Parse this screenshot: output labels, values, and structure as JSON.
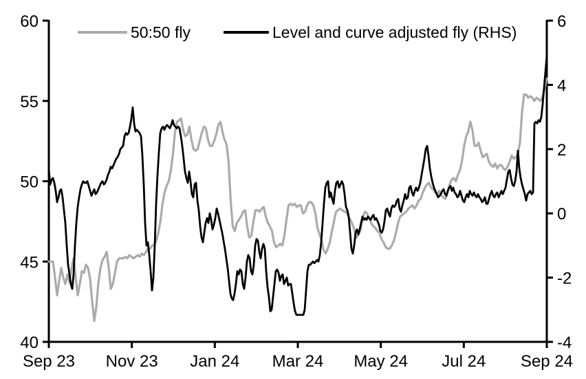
{
  "chart_data": {
    "type": "line",
    "title": "",
    "grid": false,
    "legend_position": "top",
    "background_color": "#ffffff",
    "axis_color": "#000000",
    "x_axis": {
      "labels": [
        "Sep 23",
        "Nov 23",
        "Jan 24",
        "Mar 24",
        "May 24",
        "Jul 24",
        "Sep 24"
      ]
    },
    "left_axis": {
      "min": 40,
      "max": 60,
      "ticks": [
        60,
        55,
        50,
        45,
        40
      ]
    },
    "right_axis": {
      "min": -4,
      "max": 6,
      "ticks": [
        6,
        4,
        2,
        0,
        -2,
        -4
      ]
    },
    "series": [
      {
        "name": "50:50 fly",
        "axis": "left",
        "color": "#ababab",
        "line_width": 3.2,
        "values": [
          45.0,
          45.0,
          45.0,
          44.0,
          42.9,
          43.8,
          44.6,
          44.0,
          43.6,
          44.2,
          43.7,
          44.6,
          45.2,
          44.0,
          42.9,
          43.6,
          44.4,
          44.3,
          44.8,
          44.6,
          43.9,
          42.5,
          41.3,
          42.2,
          43.7,
          44.6,
          45.1,
          45.3,
          45.6,
          44.6,
          43.3,
          43.6,
          44.3,
          45.0,
          45.2,
          45.2,
          45.2,
          45.3,
          45.2,
          45.4,
          45.3,
          45.2,
          45.3,
          45.4,
          45.3,
          45.5,
          45.4,
          45.6,
          45.8,
          45.8,
          46.0,
          46.0,
          46.3,
          46.8,
          47.5,
          48.6,
          49.3,
          49.7,
          50.0,
          50.6,
          51.6,
          53.0,
          53.7,
          53.8,
          53.9,
          53.2,
          52.8,
          52.9,
          53.4,
          52.6,
          52.0,
          51.9,
          52.0,
          52.5,
          53.0,
          53.4,
          53.3,
          52.6,
          52.2,
          52.2,
          52.5,
          52.9,
          53.5,
          53.7,
          53.1,
          52.6,
          52.3,
          51.2,
          48.8,
          47.2,
          46.9,
          47.4,
          47.6,
          47.8,
          48.1,
          48.2,
          47.2,
          46.5,
          46.6,
          47.5,
          48.2,
          48.2,
          48.1,
          48.3,
          48.4,
          47.8,
          47.4,
          47.2,
          46.9,
          46.2,
          45.9,
          46.0,
          46.1,
          46.0,
          46.6,
          47.6,
          48.5,
          48.6,
          48.5,
          48.6,
          48.4,
          48.5,
          48.5,
          48.0,
          48.1,
          48.5,
          48.7,
          48.7,
          48.5,
          48.0,
          47.1,
          46.7,
          46.3,
          45.7,
          45.5,
          45.8,
          46.2,
          46.9,
          47.5,
          48.1,
          48.2,
          48.3,
          48.2,
          48.1,
          48.1,
          47.8,
          47.6,
          47.3,
          46.9,
          46.5,
          46.7,
          47.0,
          47.8,
          48.1,
          48.0,
          47.7,
          47.4,
          47.2,
          47.1,
          46.9,
          46.8,
          46.4,
          46.2,
          45.9,
          45.8,
          45.8,
          46.0,
          46.3,
          46.8,
          47.4,
          47.8,
          47.9,
          48.0,
          48.1,
          48.3,
          48.4,
          48.5,
          48.3,
          48.5,
          48.8,
          48.9,
          49.3,
          49.6,
          49.8,
          49.9,
          49.6,
          49.5,
          49.3,
          49.2,
          49.4,
          49.1,
          49.0,
          48.9,
          49.3,
          49.8,
          50.1,
          50.2,
          50.0,
          50.4,
          50.7,
          51.3,
          52.2,
          52.8,
          53.1,
          53.7,
          53.2,
          52.2,
          52.2,
          52.4,
          51.9,
          51.5,
          51.6,
          51.7,
          51.2,
          51.0,
          50.9,
          51.1,
          50.8,
          51.0,
          51.0,
          50.8,
          50.7,
          50.9,
          51.2,
          51.6,
          51.4,
          51.5,
          51.7,
          52.4,
          54.3,
          55.4,
          55.4,
          55.2,
          55.3,
          55.2,
          55.0,
          55.2,
          55.1,
          55.0,
          55.3,
          55.8,
          56.4
        ]
      },
      {
        "name": "Level and curve adjusted fly (RHS)",
        "axis": "right",
        "color": "#000000",
        "line_width": 2.8,
        "values": [
          1.35,
          0.9,
          1.05,
          1.1,
          0.95,
          0.7,
          0.35,
          0.5,
          0.7,
          0.75,
          0.5,
          0.1,
          -0.3,
          -1.0,
          -1.6,
          -1.9,
          -2.2,
          -2.35,
          -1.9,
          -1.0,
          -0.3,
          0.2,
          0.5,
          0.75,
          0.9,
          1.0,
          0.95,
          0.95,
          1.0,
          0.85,
          0.7,
          0.55,
          0.65,
          0.75,
          0.6,
          0.65,
          0.75,
          0.85,
          0.95,
          1.0,
          0.9,
          0.95,
          1.05,
          1.2,
          1.3,
          1.45,
          1.4,
          1.5,
          1.6,
          1.7,
          1.75,
          1.85,
          2.0,
          2.05,
          2.1,
          2.4,
          2.5,
          2.45,
          2.5,
          2.7,
          2.95,
          3.3,
          2.8,
          2.55,
          2.6,
          2.55,
          2.5,
          2.4,
          1.8,
          0.9,
          -0.3,
          -1.0,
          -0.9,
          -1.3,
          -1.8,
          -2.4,
          -2.0,
          -1.0,
          0.3,
          1.2,
          1.9,
          2.5,
          2.65,
          2.7,
          2.6,
          2.7,
          2.75,
          2.7,
          2.65,
          2.75,
          2.9,
          2.75,
          2.7,
          2.65,
          2.7,
          2.65,
          2.4,
          2.1,
          1.7,
          1.3,
          1.1,
          0.95,
          1.3,
          1.0,
          0.6,
          0.5,
          0.9,
          0.95,
          0.4,
          0.1,
          -0.4,
          -0.75,
          -0.9,
          -0.6,
          -0.3,
          -0.15,
          -0.3,
          0.0,
          -0.2,
          -0.5,
          -0.35,
          -0.15,
          0.15,
          0.0,
          -0.2,
          -0.4,
          -0.6,
          -0.85,
          -1.1,
          -1.4,
          -1.7,
          -2.1,
          -2.5,
          -2.65,
          -2.7,
          -2.5,
          -2.2,
          -1.8,
          -1.9,
          -1.75,
          -1.8,
          -2.2,
          -2.35,
          -2.0,
          -1.5,
          -1.3,
          -1.4,
          -1.8,
          -1.9,
          -1.6,
          -1.0,
          -0.8,
          -0.85,
          -1.2,
          -1.4,
          -1.1,
          -0.95,
          -1.1,
          -1.8,
          -2.3,
          -2.6,
          -3.05,
          -3.0,
          -2.6,
          -2.2,
          -1.8,
          -1.75,
          -1.85,
          -2.1,
          -1.95,
          -1.9,
          -2.2,
          -2.1,
          -2.0,
          -2.25,
          -2.2,
          -2.2,
          -2.5,
          -2.8,
          -3.05,
          -3.16,
          -3.16,
          -3.16,
          -3.16,
          -3.16,
          -3.16,
          -3.0,
          -2.4,
          -1.8,
          -1.6,
          -1.6,
          -1.55,
          -1.5,
          -1.55,
          -1.5,
          -1.45,
          -1.5,
          -1.3,
          -0.9,
          -0.3,
          0.3,
          0.8,
          0.95,
          1.0,
          0.5,
          0.65,
          0.45,
          0.3,
          0.7,
          0.95,
          1.0,
          0.8,
          0.9,
          1.0,
          0.9,
          0.6,
          0.2,
          0.1,
          -0.1,
          -0.6,
          -1.1,
          -1.25,
          -1.0,
          -0.6,
          -0.5,
          -0.65,
          -0.5,
          -0.3,
          -0.1,
          -0.2,
          -0.15,
          -0.2,
          -0.1,
          -0.15,
          -0.2,
          -0.1,
          -0.05,
          -0.2,
          -0.15,
          -0.25,
          -0.35,
          -0.55,
          -0.6,
          -0.5,
          -0.25,
          0.1,
          0.15,
          0.0,
          -0.1,
          0.15,
          0.25,
          0.2,
          0.25,
          0.4,
          0.45,
          0.15,
          0.05,
          0.25,
          0.4,
          0.6,
          0.45,
          0.5,
          0.8,
          0.85,
          0.65,
          0.55,
          0.7,
          0.8,
          0.7,
          0.8,
          0.95,
          1.2,
          1.45,
          1.7,
          2.0,
          2.1,
          1.8,
          1.4,
          1.15,
          0.95,
          0.8,
          0.7,
          0.6,
          0.5,
          0.55,
          0.6,
          0.7,
          0.75,
          0.6,
          0.55,
          0.7,
          0.8,
          0.85,
          0.7,
          0.8,
          0.65,
          0.6,
          0.5,
          0.55,
          0.7,
          0.55,
          0.4,
          0.35,
          0.5,
          0.6,
          0.5,
          0.7,
          0.6,
          0.55,
          0.65,
          0.55,
          0.5,
          0.6,
          0.5,
          0.45,
          0.35,
          0.4,
          0.5,
          0.3,
          0.3,
          0.45,
          0.6,
          0.7,
          0.55,
          0.5,
          0.6,
          0.65,
          0.5,
          0.6,
          0.7,
          0.6,
          0.7,
          0.8,
          1.05,
          1.3,
          1.35,
          1.1,
          0.9,
          0.85,
          1.0,
          1.3,
          1.95,
          1.4,
          1.1,
          0.9,
          0.75,
          0.6,
          0.4,
          0.6,
          0.65,
          0.7,
          0.6,
          0.65,
          2.8,
          2.85,
          2.8,
          2.9,
          2.85,
          3.0,
          3.4,
          3.9,
          4.4,
          4.9
        ]
      }
    ]
  }
}
